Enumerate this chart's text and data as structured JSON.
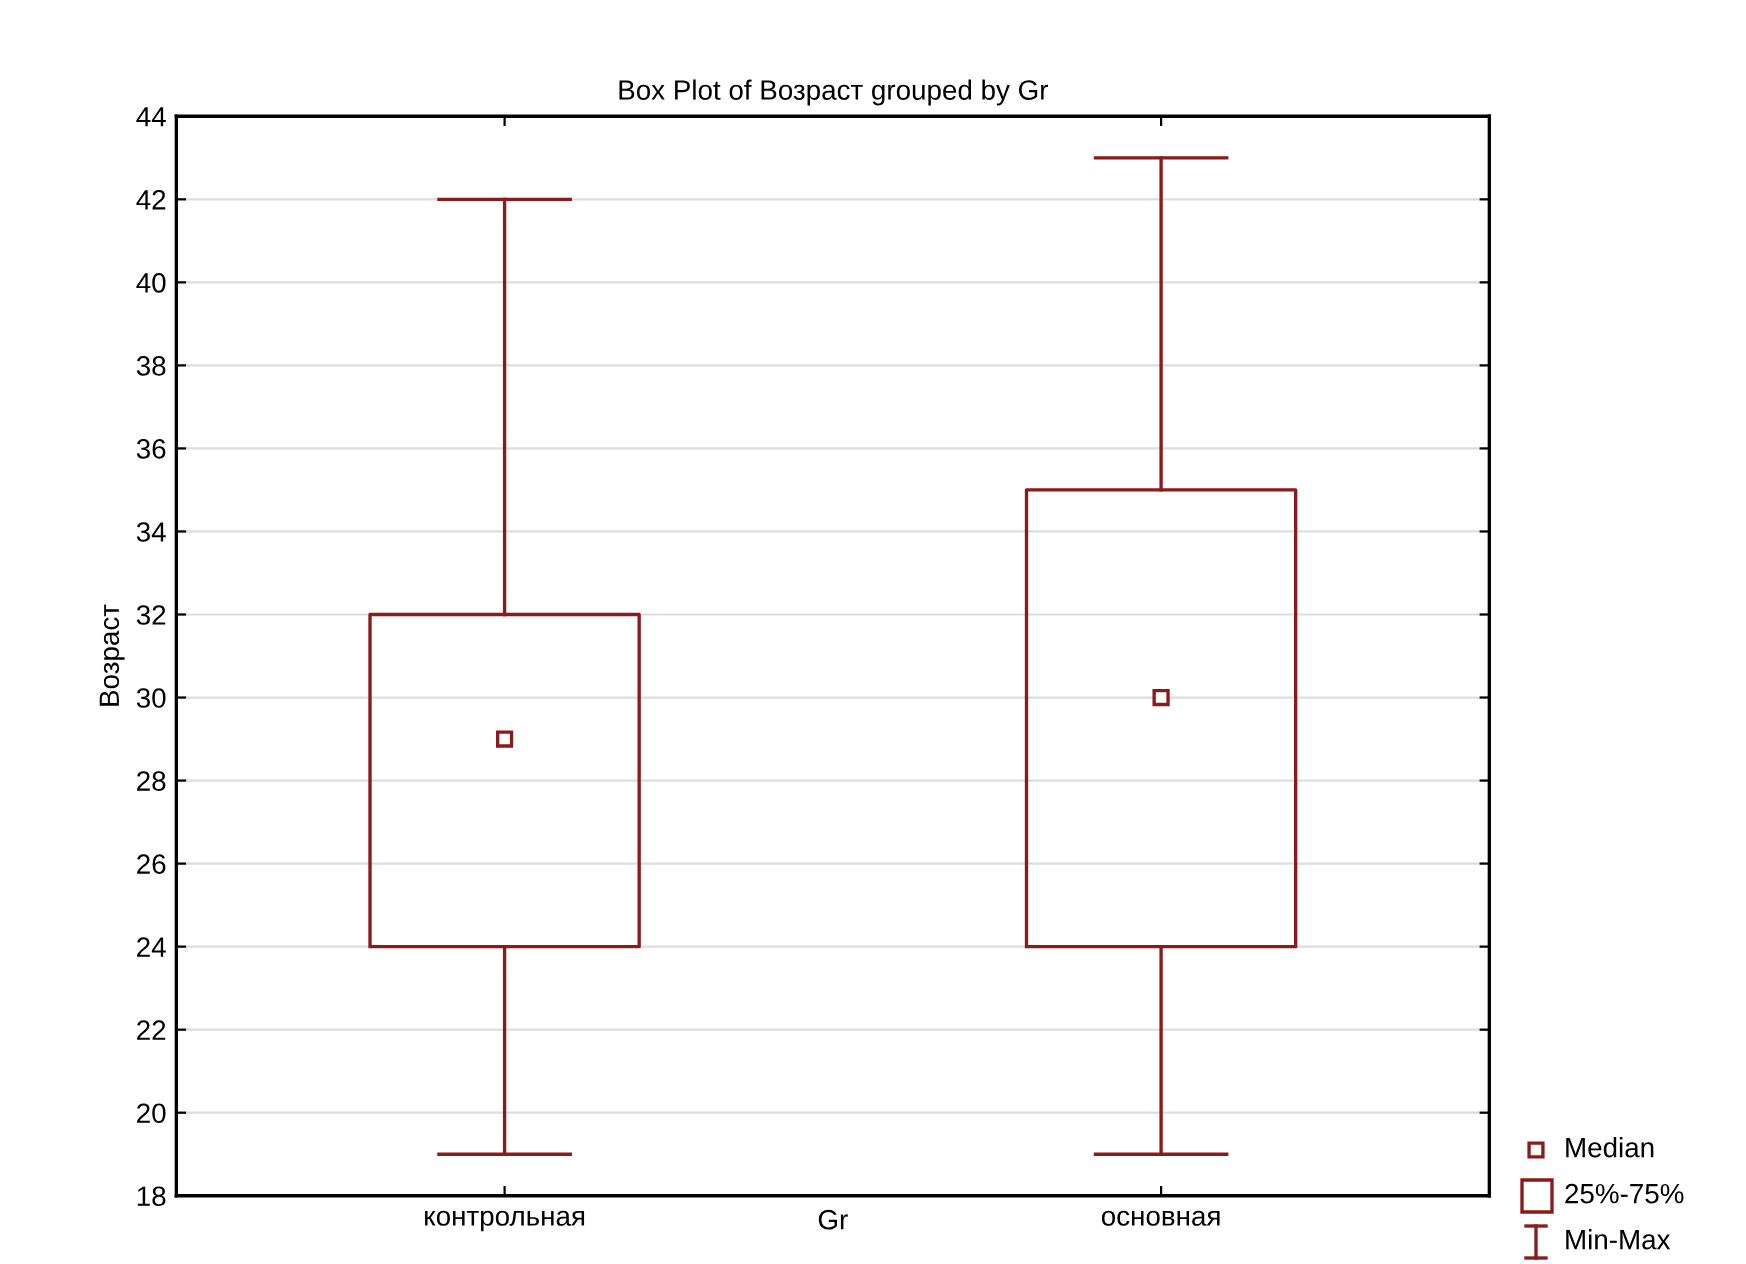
{
  "chart_data": {
    "type": "box",
    "title": "Box Plot of Возраст grouped by Gr",
    "xlabel": "Gr",
    "ylabel": "Возраст",
    "categories": [
      "контрольная",
      "основная"
    ],
    "boxes": [
      {
        "low": 19,
        "q1": 24,
        "median": 29,
        "q3": 32,
        "high": 42
      },
      {
        "low": 19,
        "q1": 24,
        "median": 30,
        "q3": 35,
        "high": 43
      }
    ],
    "color": "#8b1a1a",
    "ylim": [
      18,
      44
    ],
    "yticks": [
      18,
      20,
      22,
      24,
      26,
      28,
      30,
      32,
      34,
      36,
      38,
      40,
      42,
      44
    ],
    "grid": "y",
    "marker": "square",
    "annotations": [
      "Median",
      "25%-75%",
      "Min-Max"
    ]
  }
}
